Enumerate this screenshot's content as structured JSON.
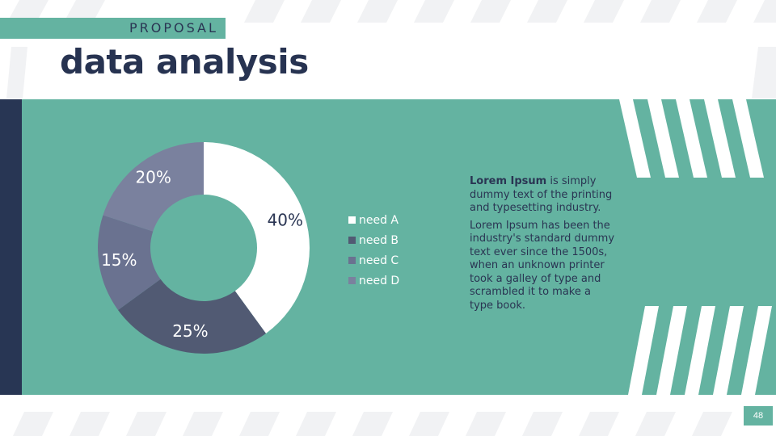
{
  "header": {
    "section_label": "PROPOSAL",
    "title": "data analysis"
  },
  "chart_data": {
    "type": "pie",
    "style": "donut",
    "categories": [
      "need A",
      "need B",
      "need C",
      "need D"
    ],
    "values": [
      40,
      25,
      15,
      20
    ],
    "value_labels": [
      "40%",
      "25%",
      "15%",
      "20%"
    ],
    "colors": [
      "#ffffff",
      "#515a73",
      "#6a7290",
      "#7a819e"
    ],
    "legend_position": "right"
  },
  "description": {
    "p1_bold": "Lorem Ipsum",
    "p1_rest": " is simply dummy text of the printing and typesetting industry.",
    "p2": "Lorem Ipsum has been the industry's standard dummy text ever since the 1500s, when an unknown printer took a galley of type and scrambled it to make a type book."
  },
  "footer": {
    "page_number": "48"
  }
}
